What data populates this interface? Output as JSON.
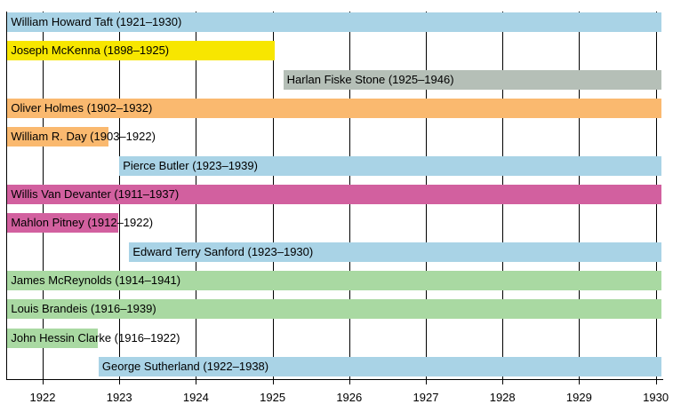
{
  "chart_data": {
    "type": "bar",
    "variant": "horizontal-gantt-timeline",
    "title": "",
    "xlabel": "",
    "ylabel": "",
    "legend": false,
    "grid": "vertical-year-gridlines-behind-bars",
    "x_ticks": [
      1922,
      1923,
      1924,
      1925,
      1926,
      1927,
      1928,
      1929,
      1930
    ],
    "x_range_displayed": [
      1921.54,
      1930.08
    ],
    "categories": [
      "William Howard Taft",
      "Joseph McKenna",
      "Harlan Fiske Stone",
      "Oliver Holmes",
      "William R. Day",
      "Pierce Butler",
      "Willis Van Devanter",
      "Mahlon Pitney",
      "Edward Terry Sanford",
      "James McReynolds",
      "Louis Brandeis",
      "John Hessin Clarke",
      "George Sutherland"
    ],
    "bars": [
      {
        "name": "William Howard Taft",
        "label": "William Howard Taft (1921–1930)",
        "tenure_start": 1921,
        "tenure_end": 1930,
        "shown_start": 1921.54,
        "shown_end": 1930.08,
        "color": "#a9d3e6"
      },
      {
        "name": "Joseph McKenna",
        "label": "Joseph McKenna (1898–1925)",
        "tenure_start": 1898,
        "tenure_end": 1925,
        "shown_start": 1921.54,
        "shown_end": 1925.03,
        "color": "#f7e600"
      },
      {
        "name": "Harlan Fiske Stone",
        "label": "Harlan Fiske Stone (1925–1946)",
        "tenure_start": 1925,
        "tenure_end": 1946,
        "shown_start": 1925.14,
        "shown_end": 1930.08,
        "color": "#b5bfb7"
      },
      {
        "name": "Oliver Holmes",
        "label": "Oliver Holmes (1902–1932)",
        "tenure_start": 1902,
        "tenure_end": 1932,
        "shown_start": 1921.54,
        "shown_end": 1930.08,
        "color": "#fab96f"
      },
      {
        "name": "William R. Day",
        "label": "William R. Day (1903–1922)",
        "tenure_start": 1903,
        "tenure_end": 1922,
        "shown_start": 1921.54,
        "shown_end": 1922.86,
        "color": "#fab96f"
      },
      {
        "name": "Pierce Butler",
        "label": "Pierce Butler (1923–1939)",
        "tenure_start": 1923,
        "tenure_end": 1939,
        "shown_start": 1923.0,
        "shown_end": 1930.08,
        "color": "#a9d3e6"
      },
      {
        "name": "Willis Van Devanter",
        "label": "Willis Van Devanter (1911–1937)",
        "tenure_start": 1911,
        "tenure_end": 1937,
        "shown_start": 1921.54,
        "shown_end": 1930.08,
        "color": "#d2609f"
      },
      {
        "name": "Mahlon Pitney",
        "label": "Mahlon Pitney (1912–1922)",
        "tenure_start": 1912,
        "tenure_end": 1922,
        "shown_start": 1921.54,
        "shown_end": 1922.99,
        "color": "#d2609f"
      },
      {
        "name": "Edward Terry Sanford",
        "label": "Edward Terry Sanford (1923–1930)",
        "tenure_start": 1923,
        "tenure_end": 1930,
        "shown_start": 1923.13,
        "shown_end": 1930.08,
        "color": "#a9d3e6"
      },
      {
        "name": "James McReynolds",
        "label": "James McReynolds (1914–1941)",
        "tenure_start": 1914,
        "tenure_end": 1941,
        "shown_start": 1921.54,
        "shown_end": 1930.08,
        "color": "#a9d9a2"
      },
      {
        "name": "Louis Brandeis",
        "label": "Louis Brandeis (1916–1939)",
        "tenure_start": 1916,
        "tenure_end": 1939,
        "shown_start": 1921.54,
        "shown_end": 1930.08,
        "color": "#a9d9a2"
      },
      {
        "name": "John Hessin Clarke",
        "label": "John Hessin Clarke (1916–1922)",
        "tenure_start": 1916,
        "tenure_end": 1922,
        "shown_start": 1921.54,
        "shown_end": 1922.72,
        "color": "#a9d9a2"
      },
      {
        "name": "George Sutherland",
        "label": "George Sutherland (1922–1938)",
        "tenure_start": 1922,
        "tenure_end": 1938,
        "shown_start": 1922.73,
        "shown_end": 1930.08,
        "color": "#a9d3e6"
      }
    ],
    "colors": {
      "background": "#ffffff",
      "axis": "#000000",
      "grid": "#000000",
      "bar_text": "#000000",
      "light_blue": "#a9d3e6",
      "yellow": "#f7e600",
      "gray": "#b5bfb7",
      "orange": "#fab96f",
      "magenta": "#d2609f",
      "green": "#a9d9a2"
    }
  }
}
